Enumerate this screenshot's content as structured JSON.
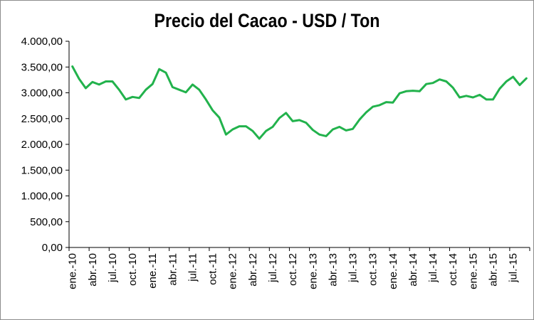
{
  "chart_data": {
    "type": "line",
    "title": "Precio del Cacao - USD / Ton",
    "xlabel": "",
    "ylabel": "",
    "ylim": [
      0,
      4000
    ],
    "y_ticks": [
      0,
      500,
      1000,
      1500,
      2000,
      2500,
      3000,
      3500,
      4000
    ],
    "y_tick_labels": [
      "0,00",
      "500,00",
      "1.000,00",
      "1.500,00",
      "2.000,00",
      "2.500,00",
      "3.000,00",
      "3.500,00",
      "4.000,00"
    ],
    "grid": false,
    "legend": "none",
    "line_color": "#22b24c",
    "x": [
      "ene.-10",
      "feb.-10",
      "mar.-10",
      "abr.-10",
      "may.-10",
      "jun.-10",
      "jul.-10",
      "ago.-10",
      "sep.-10",
      "oct.-10",
      "nov.-10",
      "dic.-10",
      "ene.-11",
      "feb.-11",
      "mar.-11",
      "abr.-11",
      "may.-11",
      "jun.-11",
      "jul.-11",
      "ago.-11",
      "sep.-11",
      "oct.-11",
      "nov.-11",
      "dic.-11",
      "ene.-12",
      "feb.-12",
      "mar.-12",
      "abr.-12",
      "may.-12",
      "jun.-12",
      "jul.-12",
      "ago.-12",
      "sep.-12",
      "oct.-12",
      "nov.-12",
      "dic.-12",
      "ene.-13",
      "feb.-13",
      "mar.-13",
      "abr.-13",
      "may.-13",
      "jun.-13",
      "jul.-13",
      "ago.-13",
      "sep.-13",
      "oct.-13",
      "nov.-13",
      "dic.-13",
      "ene.-14",
      "feb.-14",
      "mar.-14",
      "abr.-14",
      "may.-14",
      "jun.-14",
      "jul.-14",
      "ago.-14",
      "sep.-14",
      "oct.-14",
      "nov.-14",
      "dic.-14",
      "ene.-15",
      "feb.-15",
      "mar.-15",
      "abr.-15",
      "may.-15",
      "jun.-15",
      "jul.-15",
      "ago.-15",
      "sep.-15"
    ],
    "x_tick_labels": [
      "ene.-10",
      "abr.-10",
      "jul.-10",
      "oct.-10",
      "ene.-11",
      "abr.-11",
      "jul.-11",
      "oct.-11",
      "ene.-12",
      "abr.-12",
      "jul.-12",
      "oct.-12",
      "ene.-13",
      "abr.-13",
      "jul.-13",
      "oct.-13",
      "ene.-14",
      "abr.-14",
      "jul.-14",
      "oct.-14",
      "ene.-15",
      "abr.-15",
      "jul.-15"
    ],
    "series": [
      {
        "values": [
          3510,
          3270,
          3090,
          3210,
          3160,
          3220,
          3220,
          3060,
          2870,
          2920,
          2900,
          3060,
          3170,
          3460,
          3390,
          3110,
          3060,
          3010,
          3160,
          3060,
          2870,
          2660,
          2520,
          2190,
          2290,
          2350,
          2350,
          2260,
          2110,
          2260,
          2340,
          2510,
          2610,
          2450,
          2470,
          2420,
          2280,
          2190,
          2160,
          2290,
          2340,
          2270,
          2300,
          2480,
          2620,
          2730,
          2760,
          2820,
          2810,
          2990,
          3030,
          3040,
          3030,
          3170,
          3190,
          3260,
          3220,
          3100,
          2910,
          2940,
          2910,
          2960,
          2870,
          2870,
          3080,
          3220,
          3310,
          3150,
          3280
        ]
      }
    ]
  }
}
